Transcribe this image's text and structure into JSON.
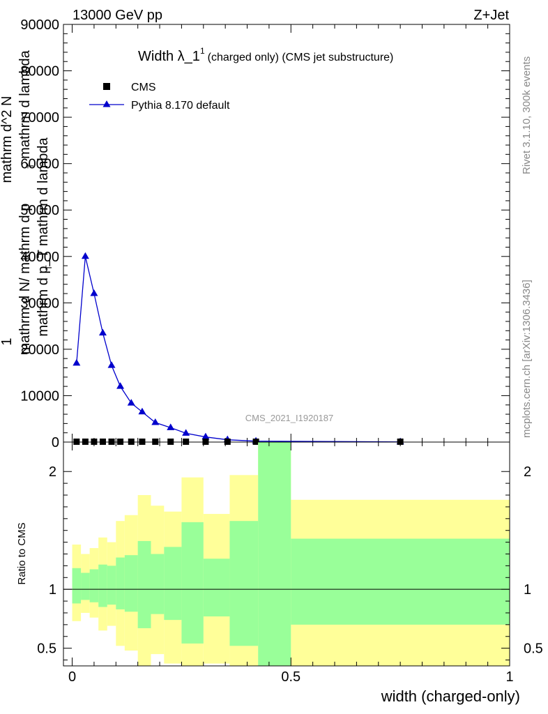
{
  "header": {
    "left": "13000 GeV pp",
    "right": "Z+Jet"
  },
  "side_labels": {
    "rivet": "Rivet 3.1.10,  300k events",
    "mcplots": "mcplots.cern.ch [arXiv:1306.3436]"
  },
  "colors": {
    "mc_line": "#0000cc",
    "data_marker": "#000000",
    "band_inner": "#99ff99",
    "band_outer": "#ffff99"
  },
  "chart_data": [
    {
      "type": "line",
      "title_main": "Width λ_1",
      "title_sup": "1",
      "title_rest": "(charged only) (CMS jet substructure)",
      "ylabel_numerator": "1",
      "ylabel_stack": [
        "mathrm d N/ mathrm d p",
        "mathrm d p_T mathrm d lambda",
        "mathrm d^2 N",
        "mathrm d lambda"
      ],
      "ylabel_sub": [
        "T",
        "T"
      ],
      "analysis_label": "CMS_2021_I1920187",
      "ylim": [
        0,
        90000
      ],
      "yticks": [
        0,
        10000,
        20000,
        30000,
        40000,
        50000,
        60000,
        70000,
        80000,
        90000
      ],
      "ytick_labels": [
        "0",
        "10000",
        "20000",
        "30000",
        "40000",
        "50000",
        "60000",
        "70000",
        "80000",
        "90000"
      ],
      "xlim": [
        -0.02,
        1.0
      ],
      "legend_position": "top-left",
      "series": [
        {
          "name": "CMS",
          "marker": "square",
          "x": [
            0.01,
            0.03,
            0.05,
            0.07,
            0.09,
            0.11,
            0.135,
            0.16,
            0.19,
            0.225,
            0.26,
            0.305,
            0.355,
            0.42,
            0.75
          ],
          "y": [
            80,
            80,
            80,
            80,
            80,
            80,
            80,
            80,
            80,
            80,
            80,
            80,
            80,
            80,
            80
          ]
        },
        {
          "name": "Pythia 8.170 default",
          "marker": "triangle",
          "x": [
            0.01,
            0.03,
            0.05,
            0.07,
            0.09,
            0.11,
            0.135,
            0.16,
            0.19,
            0.225,
            0.26,
            0.305,
            0.355,
            0.42,
            0.75
          ],
          "y": [
            17000,
            40000,
            32000,
            23500,
            16500,
            12000,
            8400,
            6500,
            4200,
            3100,
            1900,
            1100,
            500,
            200,
            30
          ]
        }
      ]
    },
    {
      "type": "area",
      "ylabel": "Ratio to CMS",
      "xlabel": "width (charged-only)",
      "ylim": [
        0.35,
        2.25
      ],
      "yticks": [
        0.5,
        1,
        2
      ],
      "ytick_labels": [
        "0.5",
        "1",
        "2"
      ],
      "xlim": [
        -0.02,
        1.0
      ],
      "xticks": [
        0,
        0.5,
        1
      ],
      "xtick_labels": [
        "0",
        "0.5",
        "1"
      ],
      "reference_line": 1,
      "bins": [
        {
          "lo": 0.0,
          "hi": 0.02,
          "inner_lo": 0.88,
          "inner_hi": 1.18,
          "outer_lo": 0.73,
          "outer_hi": 1.38
        },
        {
          "lo": 0.02,
          "hi": 0.04,
          "inner_lo": 0.91,
          "inner_hi": 1.14,
          "outer_lo": 0.8,
          "outer_hi": 1.3
        },
        {
          "lo": 0.04,
          "hi": 0.06,
          "inner_lo": 0.89,
          "inner_hi": 1.17,
          "outer_lo": 0.76,
          "outer_hi": 1.35
        },
        {
          "lo": 0.06,
          "hi": 0.08,
          "inner_lo": 0.85,
          "inner_hi": 1.21,
          "outer_lo": 0.65,
          "outer_hi": 1.44
        },
        {
          "lo": 0.08,
          "hi": 0.1,
          "inner_lo": 0.87,
          "inner_hi": 1.2,
          "outer_lo": 0.69,
          "outer_hi": 1.4
        },
        {
          "lo": 0.1,
          "hi": 0.12,
          "inner_lo": 0.83,
          "inner_hi": 1.27,
          "outer_lo": 0.52,
          "outer_hi": 1.58
        },
        {
          "lo": 0.12,
          "hi": 0.15,
          "inner_lo": 0.81,
          "inner_hi": 1.29,
          "outer_lo": 0.48,
          "outer_hi": 1.63
        },
        {
          "lo": 0.15,
          "hi": 0.18,
          "inner_lo": 0.67,
          "inner_hi": 1.41,
          "outer_lo": 0.35,
          "outer_hi": 1.8
        },
        {
          "lo": 0.18,
          "hi": 0.21,
          "inner_lo": 0.79,
          "inner_hi": 1.3,
          "outer_lo": 0.45,
          "outer_hi": 1.71
        },
        {
          "lo": 0.21,
          "hi": 0.25,
          "inner_lo": 0.74,
          "inner_hi": 1.36,
          "outer_lo": 0.37,
          "outer_hi": 1.66
        },
        {
          "lo": 0.25,
          "hi": 0.3,
          "inner_lo": 0.54,
          "inner_hi": 1.57,
          "outer_lo": 0.35,
          "outer_hi": 1.95
        },
        {
          "lo": 0.3,
          "hi": 0.36,
          "inner_lo": 0.77,
          "inner_hi": 1.26,
          "outer_lo": 0.37,
          "outer_hi": 1.64
        },
        {
          "lo": 0.36,
          "hi": 0.425,
          "inner_lo": 0.52,
          "inner_hi": 1.58,
          "outer_lo": 0.35,
          "outer_hi": 1.97
        },
        {
          "lo": 0.425,
          "hi": 0.5,
          "inner_lo": 0.35,
          "inner_hi": 2.25,
          "outer_lo": 0.35,
          "outer_hi": 2.25
        },
        {
          "lo": 0.5,
          "hi": 1.0,
          "inner_lo": 0.7,
          "inner_hi": 1.43,
          "outer_lo": 0.35,
          "outer_hi": 1.76
        }
      ]
    }
  ]
}
